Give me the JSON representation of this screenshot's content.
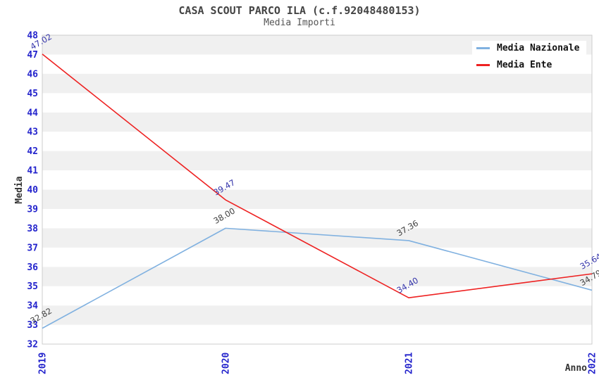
{
  "header": {
    "title": "CASA SCOUT PARCO ILA (c.f.92048480153)",
    "subtitle": "Media Importi"
  },
  "chart_data": {
    "type": "line",
    "x": [
      "2019",
      "2020",
      "2021",
      "2022"
    ],
    "series": [
      {
        "name": "Media Nazionale",
        "color": "#80b1e0",
        "label_color": "#404040",
        "values": [
          32.82,
          38.0,
          37.36,
          34.79
        ]
      },
      {
        "name": "Media Ente",
        "color": "#ee2222",
        "label_color": "#3434aa",
        "values": [
          47.02,
          39.47,
          34.4,
          35.64
        ]
      }
    ],
    "xlabel": "Anno",
    "ylabel": "Media",
    "ylim": [
      32,
      48
    ],
    "ytick_step": 1,
    "grid": "horizontal-stripes",
    "legend_position": "top-right",
    "colors": {
      "tick_label": "#2323cc",
      "stripe": "#f0f0f0",
      "plot_background": "#ffffff",
      "plot_border": "#cccccc"
    }
  }
}
